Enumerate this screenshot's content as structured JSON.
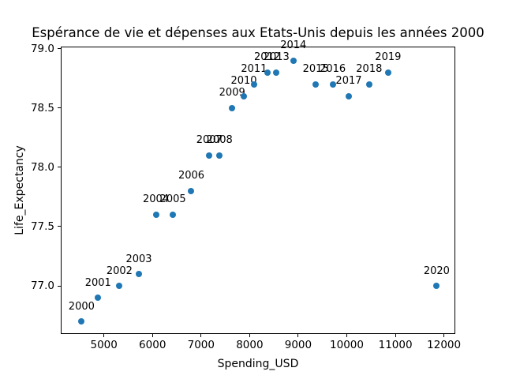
{
  "chart_data": {
    "type": "scatter",
    "title": "Espérance de vie et dépenses aux Etats-Unis depuis les années 2000",
    "xlabel": "Spending_USD",
    "ylabel": "Life_Expectancy",
    "xlim": [
      4112,
      12233
    ],
    "ylim": [
      76.594,
      79.018
    ],
    "grid": false,
    "legend": "none",
    "point_color": "#1f77b4",
    "xticks": [
      {
        "v": 5000,
        "label": "5000"
      },
      {
        "v": 6000,
        "label": "6000"
      },
      {
        "v": 7000,
        "label": "7000"
      },
      {
        "v": 8000,
        "label": "8000"
      },
      {
        "v": 9000,
        "label": "9000"
      },
      {
        "v": 10000,
        "label": "10000"
      },
      {
        "v": 11000,
        "label": "11000"
      },
      {
        "v": 12000,
        "label": "12000"
      }
    ],
    "yticks": [
      {
        "v": 79.0,
        "label": "79.0"
      },
      {
        "v": 78.5,
        "label": "78.5"
      },
      {
        "v": 78.0,
        "label": "78.0"
      },
      {
        "v": 77.5,
        "label": "77.5"
      },
      {
        "v": 77.0,
        "label": "77.0"
      }
    ],
    "points": [
      {
        "year": "2000",
        "spending_usd": 4540,
        "life_expectancy": 76.7
      },
      {
        "year": "2001",
        "spending_usd": 4880,
        "life_expectancy": 76.9
      },
      {
        "year": "2002",
        "spending_usd": 5320,
        "life_expectancy": 77.0
      },
      {
        "year": "2003",
        "spending_usd": 5720,
        "life_expectancy": 77.1
      },
      {
        "year": "2004",
        "spending_usd": 6070,
        "life_expectancy": 77.6
      },
      {
        "year": "2005",
        "spending_usd": 6420,
        "life_expectancy": 77.6
      },
      {
        "year": "2006",
        "spending_usd": 6800,
        "life_expectancy": 77.8
      },
      {
        "year": "2007",
        "spending_usd": 7170,
        "life_expectancy": 78.1
      },
      {
        "year": "2008",
        "spending_usd": 7380,
        "life_expectancy": 78.1
      },
      {
        "year": "2009",
        "spending_usd": 7640,
        "life_expectancy": 78.5
      },
      {
        "year": "2010",
        "spending_usd": 7880,
        "life_expectancy": 78.6
      },
      {
        "year": "2011",
        "spending_usd": 8090,
        "life_expectancy": 78.7
      },
      {
        "year": "2012",
        "spending_usd": 8360,
        "life_expectancy": 78.8
      },
      {
        "year": "2013",
        "spending_usd": 8550,
        "life_expectancy": 78.8
      },
      {
        "year": "2014",
        "spending_usd": 8900,
        "life_expectancy": 78.9
      },
      {
        "year": "2015",
        "spending_usd": 9360,
        "life_expectancy": 78.7
      },
      {
        "year": "2016",
        "spending_usd": 9710,
        "life_expectancy": 78.7
      },
      {
        "year": "2017",
        "spending_usd": 10040,
        "life_expectancy": 78.6
      },
      {
        "year": "2018",
        "spending_usd": 10460,
        "life_expectancy": 78.7
      },
      {
        "year": "2019",
        "spending_usd": 10850,
        "life_expectancy": 78.8
      },
      {
        "year": "2020",
        "spending_usd": 11850,
        "life_expectancy": 77.0
      }
    ]
  }
}
